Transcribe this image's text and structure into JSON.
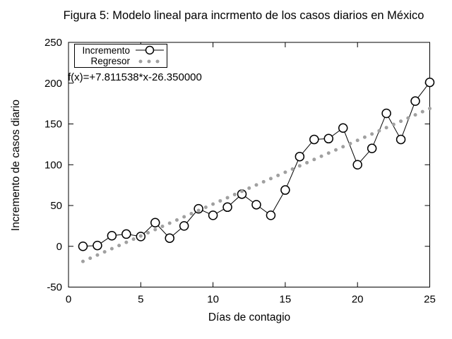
{
  "title": "Figura 5: Modelo lineal para incrmento de los casos diarios en México",
  "colors": {
    "incremento": "#000000",
    "regresor": "#a0a0a0",
    "background": "#ffffff",
    "axis": "#000000"
  },
  "chart_data": {
    "type": "line",
    "title": "Figura 5: Modelo lineal para incrmento de los casos diarios en México",
    "xlabel": "Días de contagio",
    "ylabel": "Incremento de casos diario",
    "xlim": [
      0,
      25
    ],
    "ylim": [
      -50,
      250
    ],
    "x_ticks": [
      0,
      5,
      10,
      15,
      20,
      25
    ],
    "y_ticks": [
      -50,
      0,
      50,
      100,
      150,
      200,
      250
    ],
    "grid": false,
    "legend_position": "top-left",
    "annotation": "f(x)=+7.811538*x-26.350000",
    "series": [
      {
        "name": "Incremento",
        "type": "line+open-circle",
        "color": "#000000",
        "x": [
          1,
          2,
          3,
          4,
          5,
          6,
          7,
          8,
          9,
          10,
          11,
          12,
          13,
          14,
          15,
          16,
          17,
          18,
          19,
          20,
          21,
          22,
          23,
          24,
          25
        ],
        "values": [
          0,
          1,
          13,
          15,
          12,
          29,
          10,
          25,
          46,
          38,
          48,
          64,
          51,
          38,
          69,
          110,
          131,
          132,
          145,
          100,
          120,
          163,
          131,
          178,
          201
        ]
      },
      {
        "name": "Regresor",
        "type": "dots",
        "color": "#a0a0a0",
        "model": "linear",
        "slope": 7.811538,
        "intercept": -26.35,
        "x_start": 1,
        "x_end": 25,
        "x_step": 0.5
      }
    ]
  }
}
